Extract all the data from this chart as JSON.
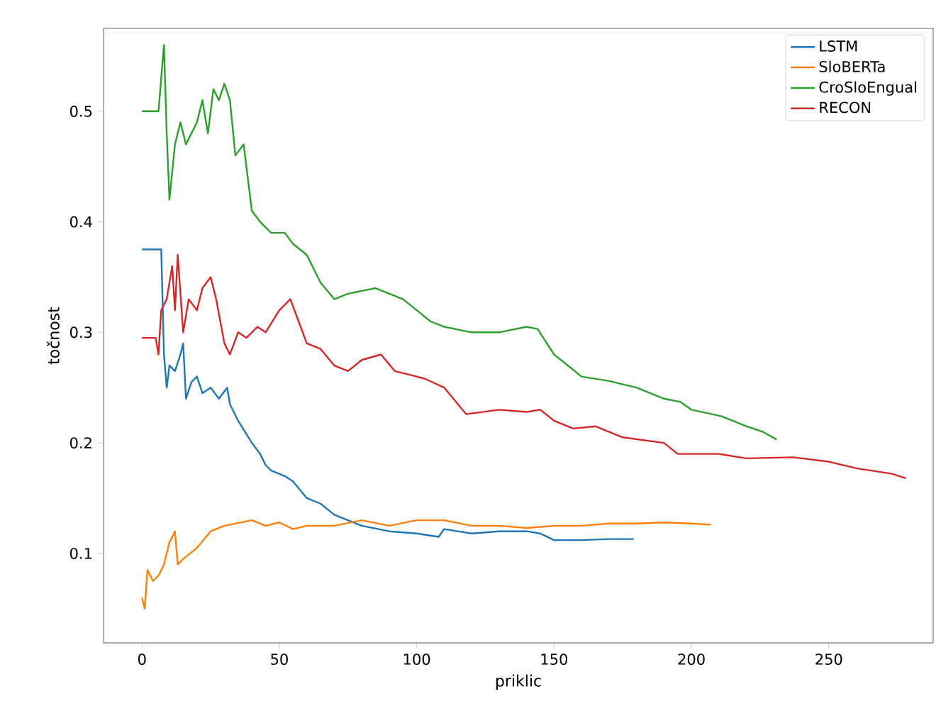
{
  "chart_data": {
    "type": "line",
    "xlabel": "priklic",
    "ylabel": "točnost",
    "xlim": [
      -14,
      288
    ],
    "ylim": [
      0.019,
      0.575
    ],
    "xticks": [
      0,
      50,
      100,
      150,
      200,
      250
    ],
    "yticks": [
      0.1,
      0.2,
      0.3,
      0.4,
      0.5
    ],
    "legend": "top right",
    "series": [
      {
        "name": "LSTM",
        "color": "#1f77b4",
        "x": [
          0,
          7,
          8,
          9,
          10,
          12,
          14,
          15,
          16,
          18,
          20,
          22,
          25,
          28,
          31,
          32,
          35,
          40,
          43,
          45,
          47,
          52,
          55,
          60,
          65,
          70,
          75,
          80,
          90,
          100,
          108,
          110,
          120,
          130,
          140,
          145,
          150,
          160,
          170,
          179
        ],
        "values": [
          0.375,
          0.375,
          0.28,
          0.25,
          0.27,
          0.265,
          0.28,
          0.29,
          0.24,
          0.255,
          0.26,
          0.245,
          0.25,
          0.24,
          0.25,
          0.235,
          0.22,
          0.2,
          0.19,
          0.18,
          0.175,
          0.17,
          0.165,
          0.15,
          0.145,
          0.135,
          0.13,
          0.125,
          0.12,
          0.118,
          0.115,
          0.122,
          0.118,
          0.12,
          0.12,
          0.118,
          0.112,
          0.112,
          0.113,
          0.113
        ]
      },
      {
        "name": "SloBERTa",
        "color": "#ff7f0e",
        "x": [
          0,
          1,
          2,
          4,
          6,
          8,
          10,
          12,
          13,
          15,
          20,
          25,
          30,
          40,
          45,
          50,
          55,
          60,
          70,
          80,
          90,
          100,
          110,
          120,
          130,
          140,
          150,
          160,
          170,
          180,
          190,
          200,
          207
        ],
        "values": [
          0.06,
          0.05,
          0.085,
          0.075,
          0.08,
          0.09,
          0.11,
          0.12,
          0.09,
          0.095,
          0.105,
          0.12,
          0.125,
          0.13,
          0.125,
          0.128,
          0.122,
          0.125,
          0.125,
          0.13,
          0.125,
          0.13,
          0.13,
          0.125,
          0.125,
          0.123,
          0.125,
          0.125,
          0.127,
          0.127,
          0.128,
          0.127,
          0.126
        ]
      },
      {
        "name": "CroSloEngual",
        "color": "#2ca02c",
        "x": [
          0,
          6,
          7,
          8,
          9,
          10,
          12,
          14,
          16,
          20,
          22,
          24,
          26,
          28,
          30,
          32,
          34,
          37,
          40,
          43,
          47,
          52,
          55,
          60,
          65,
          70,
          75,
          85,
          90,
          95,
          100,
          105,
          110,
          120,
          130,
          140,
          144,
          150,
          155,
          160,
          170,
          180,
          190,
          196,
          200,
          211,
          220,
          226,
          231
        ],
        "values": [
          0.5,
          0.5,
          0.53,
          0.56,
          0.48,
          0.42,
          0.47,
          0.49,
          0.47,
          0.49,
          0.51,
          0.48,
          0.52,
          0.51,
          0.525,
          0.51,
          0.46,
          0.47,
          0.41,
          0.4,
          0.39,
          0.39,
          0.38,
          0.37,
          0.345,
          0.33,
          0.335,
          0.34,
          0.335,
          0.33,
          0.32,
          0.31,
          0.305,
          0.3,
          0.3,
          0.305,
          0.303,
          0.28,
          0.27,
          0.26,
          0.256,
          0.25,
          0.24,
          0.237,
          0.23,
          0.224,
          0.215,
          0.21,
          0.203
        ]
      },
      {
        "name": "RECON",
        "color": "#d62728",
        "x": [
          0,
          5,
          6,
          7,
          9,
          11,
          12,
          13,
          15,
          17,
          20,
          22,
          25,
          27,
          30,
          32,
          35,
          38,
          42,
          45,
          50,
          54,
          57,
          60,
          65,
          70,
          75,
          80,
          87,
          92,
          100,
          103,
          110,
          118,
          130,
          140,
          145,
          150,
          157,
          165,
          175,
          190,
          195,
          200,
          210,
          220,
          237,
          250,
          260,
          273,
          278
        ],
        "values": [
          0.295,
          0.295,
          0.28,
          0.32,
          0.33,
          0.36,
          0.32,
          0.37,
          0.3,
          0.33,
          0.32,
          0.34,
          0.35,
          0.33,
          0.29,
          0.28,
          0.3,
          0.295,
          0.305,
          0.3,
          0.32,
          0.33,
          0.31,
          0.29,
          0.285,
          0.27,
          0.265,
          0.275,
          0.28,
          0.265,
          0.26,
          0.258,
          0.25,
          0.226,
          0.23,
          0.228,
          0.23,
          0.22,
          0.213,
          0.215,
          0.205,
          0.2,
          0.19,
          0.19,
          0.19,
          0.186,
          0.187,
          0.183,
          0.177,
          0.172,
          0.168
        ]
      }
    ]
  }
}
